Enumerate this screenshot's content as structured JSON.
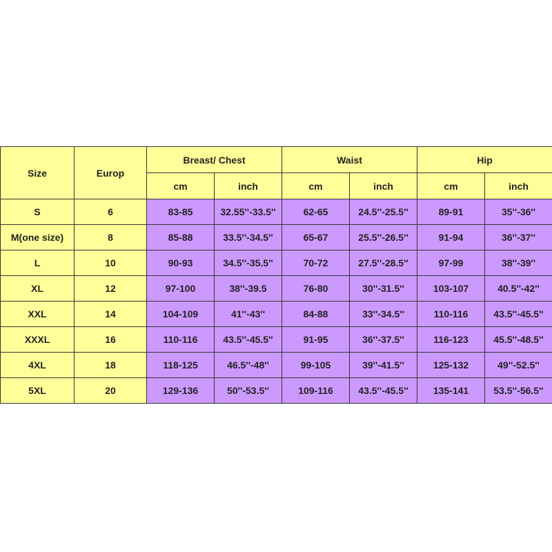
{
  "headers": {
    "size": "Size",
    "europ": "Europ",
    "groups": [
      "Breast/ Chest",
      "Waist",
      "Hip"
    ],
    "units": [
      "cm",
      "inch",
      "cm",
      "inch",
      "cm",
      "inch"
    ]
  },
  "colors": {
    "header_bg": "#ffff99",
    "data_bg": "#cc99ff",
    "border": "#333333"
  },
  "rows": [
    [
      "S",
      "6",
      "83-85",
      "32.55''-33.5''",
      "62-65",
      "24.5''-25.5''",
      "89-91",
      "35''-36''"
    ],
    [
      "M(one size)",
      "8",
      "85-88",
      "33.5''-34.5''",
      "65-67",
      "25.5''-26.5''",
      "91-94",
      "36''-37''"
    ],
    [
      "L",
      "10",
      "90-93",
      "34.5''-35.5''",
      "70-72",
      "27.5''-28.5''",
      "97-99",
      "38''-39''"
    ],
    [
      "XL",
      "12",
      "97-100",
      "38''-39.5",
      "76-80",
      "30''-31.5''",
      "103-107",
      "40.5''-42''"
    ],
    [
      "XXL",
      "14",
      "104-109",
      "41''-43''",
      "84-88",
      "33''-34.5''",
      "110-116",
      "43.5''-45.5''"
    ],
    [
      "XXXL",
      "16",
      "110-116",
      "43.5''-45.5''",
      "91-95",
      "36''-37.5''",
      "116-123",
      "45.5''-48.5''"
    ],
    [
      "4XL",
      "18",
      "118-125",
      "46.5''-48''",
      "99-105",
      "39''-41.5''",
      "125-132",
      "49''-52.5''"
    ],
    [
      "5XL",
      "20",
      "129-136",
      "50''-53.5''",
      "109-116",
      "43.5''-45.5''",
      "135-141",
      "53.5''-56.5''"
    ]
  ]
}
